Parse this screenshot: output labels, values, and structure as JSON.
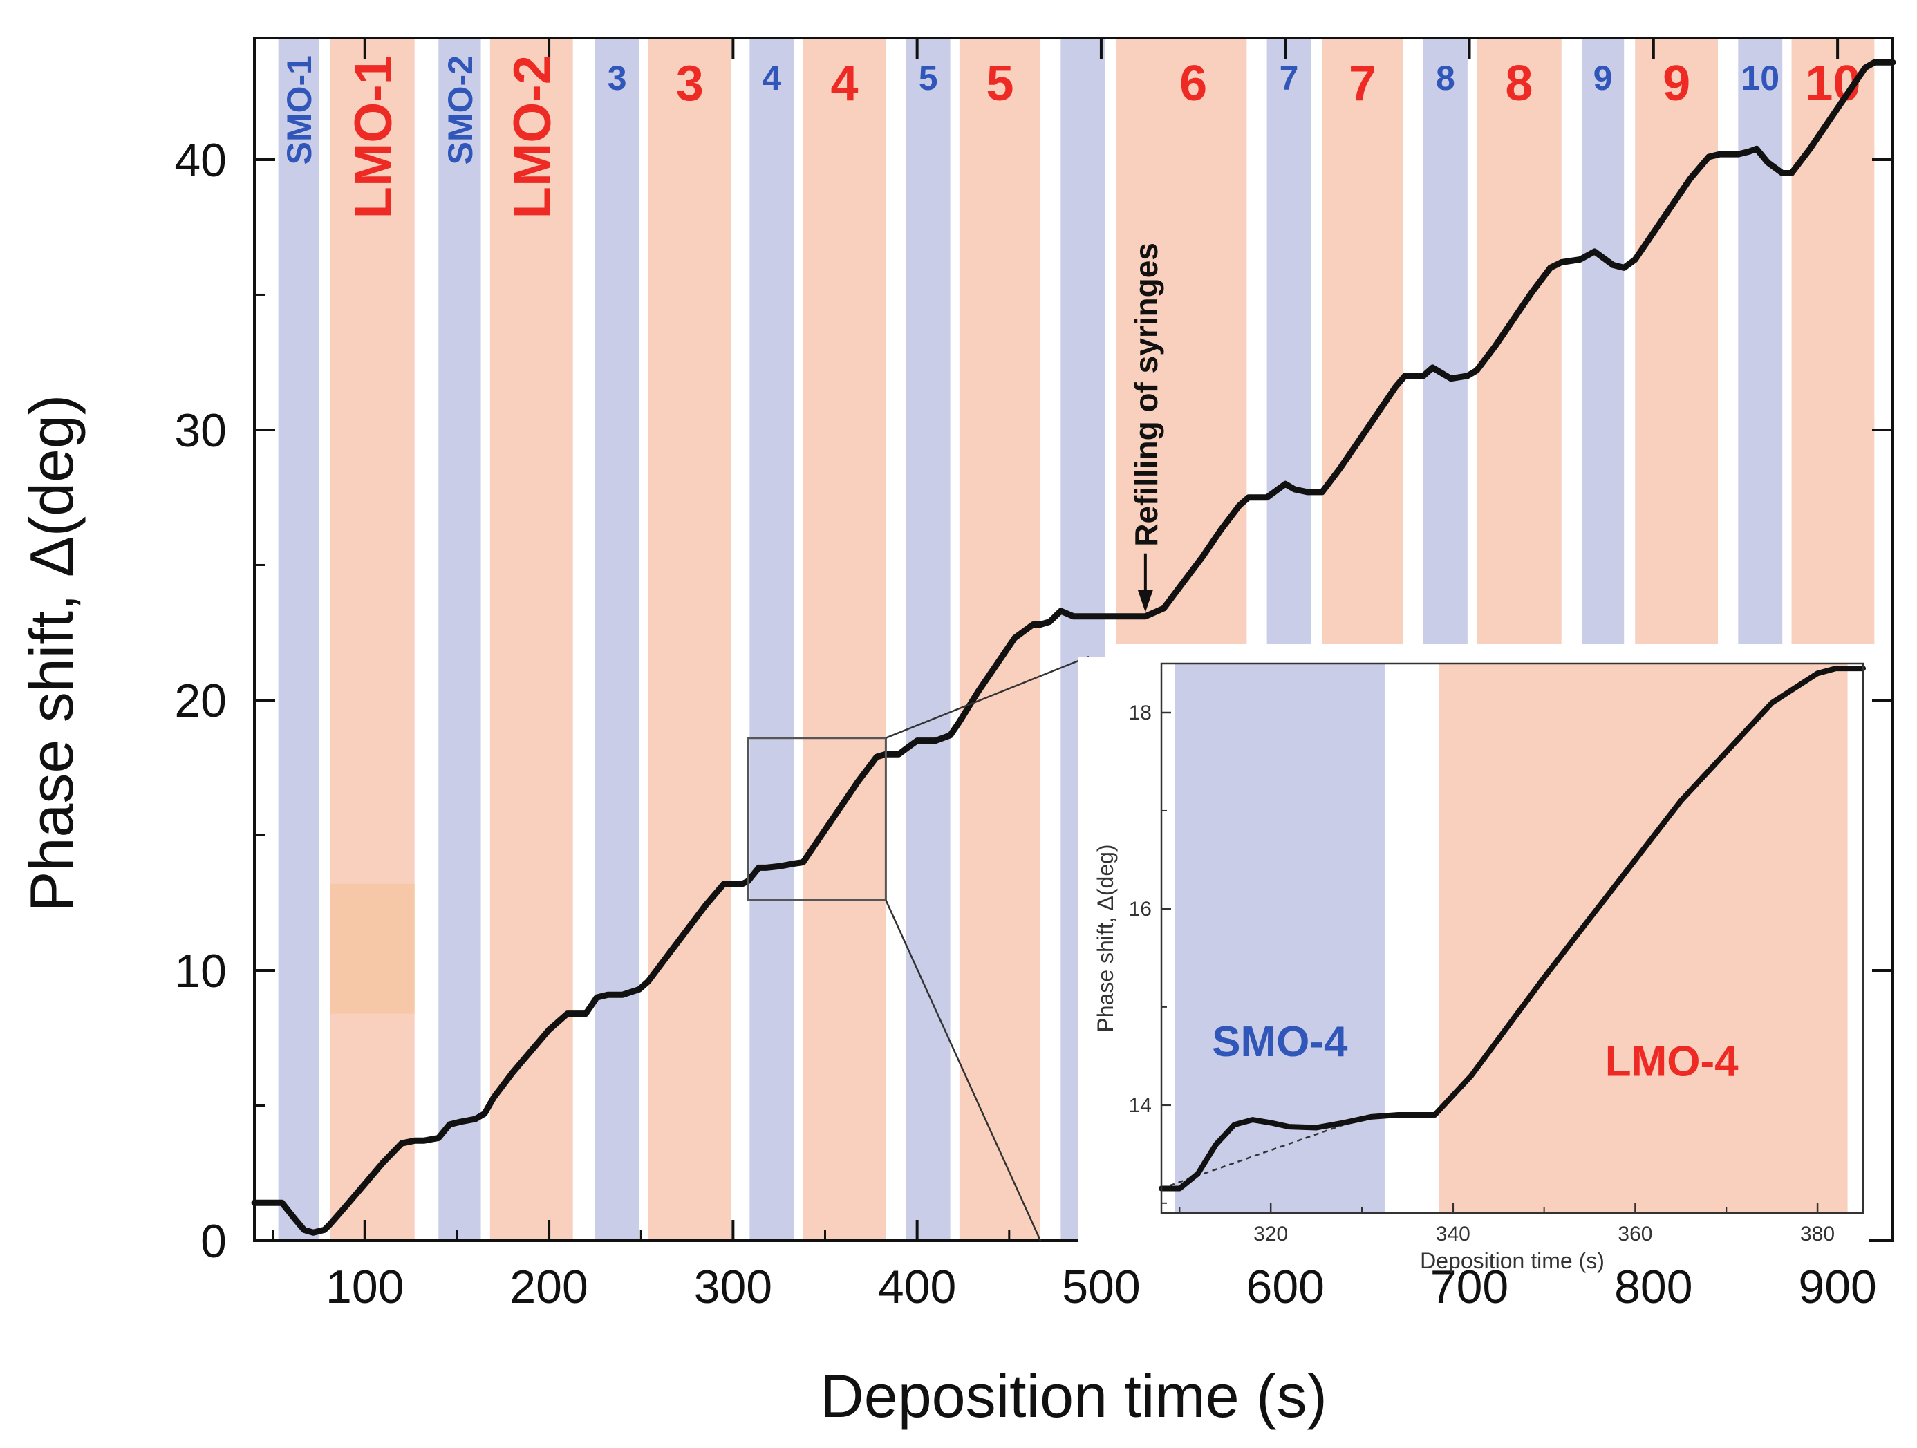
{
  "colors": {
    "smo_band": "#c9cde8",
    "lmo_band": "#f9cfbd",
    "lmo_patch": "#f7c8a8",
    "smo_text": "#2f56b8",
    "lmo_text": "#ee2a25",
    "curve": "#111111",
    "axis": "#111111"
  },
  "chart_data": [
    {
      "id": "main",
      "type": "line",
      "xlabel": "Deposition time (s)",
      "ylabel": "Phase shift, Δ(deg)",
      "xlim": [
        40,
        930
      ],
      "ylim": [
        0,
        44.5
      ],
      "xticks": [
        100,
        200,
        300,
        400,
        500,
        600,
        700,
        800,
        900
      ],
      "xtick_labels": [
        "100",
        "200",
        "300",
        "400",
        "500",
        "600",
        "700",
        "800",
        "900"
      ],
      "yticks": [
        0,
        10,
        20,
        30,
        40
      ],
      "ytick_labels": [
        "0",
        "10",
        "20",
        "30",
        "40"
      ],
      "bands": [
        {
          "kind": "smo",
          "x0": 53,
          "x1": 75,
          "label": "SMO-1",
          "label_style": "vertical"
        },
        {
          "kind": "lmo",
          "x0": 81,
          "x1": 127,
          "label": "LMO-1",
          "label_style": "vertical"
        },
        {
          "kind": "smo",
          "x0": 140,
          "x1": 163,
          "label": "SMO-2",
          "label_style": "vertical"
        },
        {
          "kind": "lmo",
          "x0": 168,
          "x1": 213,
          "label": "LMO-2",
          "label_style": "vertical"
        },
        {
          "kind": "smo",
          "x0": 225,
          "x1": 249,
          "label": "3",
          "label_style": "horizontal"
        },
        {
          "kind": "lmo",
          "x0": 254,
          "x1": 299,
          "label": "3",
          "label_style": "horizontal"
        },
        {
          "kind": "smo",
          "x0": 309,
          "x1": 333,
          "label": "4",
          "label_style": "horizontal"
        },
        {
          "kind": "lmo",
          "x0": 338,
          "x1": 383,
          "label": "4",
          "label_style": "horizontal"
        },
        {
          "kind": "smo",
          "x0": 394,
          "x1": 418,
          "label": "5",
          "label_style": "horizontal"
        },
        {
          "kind": "lmo",
          "x0": 423,
          "x1": 467,
          "label": "5",
          "label_style": "horizontal"
        },
        {
          "kind": "smo",
          "x0": 478,
          "x1": 502,
          "label": "",
          "label_style": "horizontal"
        },
        {
          "kind": "lmo",
          "x0": 508,
          "x1": 579,
          "label": "6",
          "label_style": "horizontal",
          "label_x": 550
        },
        {
          "kind": "smo",
          "x0": 590,
          "x1": 614,
          "label": "7",
          "label_style": "horizontal"
        },
        {
          "kind": "lmo",
          "x0": 620,
          "x1": 664,
          "label": "7",
          "label_style": "horizontal"
        },
        {
          "kind": "smo",
          "x0": 675,
          "x1": 699,
          "label": "8",
          "label_style": "horizontal"
        },
        {
          "kind": "lmo",
          "x0": 704,
          "x1": 750,
          "label": "8",
          "label_style": "horizontal"
        },
        {
          "kind": "smo",
          "x0": 761,
          "x1": 784,
          "label": "9",
          "label_style": "horizontal"
        },
        {
          "kind": "lmo",
          "x0": 790,
          "x1": 835,
          "label": "9",
          "label_style": "horizontal"
        },
        {
          "kind": "smo",
          "x0": 846,
          "x1": 870,
          "label": "10",
          "label_style": "horizontal"
        },
        {
          "kind": "lmo",
          "x0": 875,
          "x1": 920,
          "label": "10",
          "label_style": "horizontal"
        }
      ],
      "lmo_patch": {
        "x0": 81,
        "x1": 127,
        "y0": 8.4,
        "y1": 13.2
      },
      "annotation": {
        "text": "Refilling of syringes",
        "arrow_x": 524,
        "arrow_y": 23.1
      },
      "zoom_box": {
        "x0": 308,
        "x1": 383,
        "y0": 12.6,
        "y1": 18.6
      },
      "series": [
        {
          "name": "Phase shift",
          "x": [
            40,
            55,
            62,
            67,
            72,
            78,
            81,
            90,
            100,
            110,
            120,
            127,
            132,
            140,
            146,
            152,
            160,
            165,
            170,
            180,
            190,
            200,
            210,
            214,
            220,
            226,
            232,
            240,
            249,
            254,
            265,
            275,
            285,
            295,
            300,
            305,
            308,
            314,
            318,
            325,
            333,
            338,
            348,
            358,
            368,
            378,
            383,
            390,
            396,
            400,
            405,
            410,
            418,
            423,
            433,
            443,
            453,
            463,
            467,
            472,
            478,
            485,
            490,
            500,
            524,
            534,
            545,
            555,
            565,
            575,
            580,
            590,
            600,
            605,
            612,
            620,
            630,
            640,
            650,
            660,
            665,
            675,
            680,
            685,
            690,
            699,
            704,
            714,
            724,
            734,
            744,
            750,
            760,
            768,
            772,
            778,
            784,
            790,
            800,
            810,
            820,
            830,
            836,
            846,
            852,
            856,
            862,
            870,
            875,
            885,
            895,
            905,
            915,
            920,
            930
          ],
          "y": [
            1.4,
            1.4,
            0.8,
            0.4,
            0.3,
            0.4,
            0.6,
            1.3,
            2.1,
            2.9,
            3.6,
            3.7,
            3.7,
            3.8,
            4.3,
            4.4,
            4.5,
            4.7,
            5.3,
            6.2,
            7.0,
            7.8,
            8.4,
            8.4,
            8.4,
            9.0,
            9.1,
            9.1,
            9.3,
            9.6,
            10.6,
            11.5,
            12.4,
            13.2,
            13.2,
            13.2,
            13.3,
            13.8,
            13.8,
            13.85,
            13.95,
            14.0,
            15.0,
            16.0,
            17.0,
            17.9,
            18.0,
            18.0,
            18.3,
            18.5,
            18.5,
            18.5,
            18.7,
            19.2,
            20.3,
            21.3,
            22.3,
            22.8,
            22.8,
            22.9,
            23.3,
            23.1,
            23.1,
            23.1,
            23.1,
            23.4,
            24.4,
            25.3,
            26.3,
            27.2,
            27.5,
            27.5,
            28.0,
            27.8,
            27.7,
            27.7,
            28.6,
            29.6,
            30.6,
            31.6,
            32.0,
            32.0,
            32.3,
            32.1,
            31.9,
            32.0,
            32.2,
            33.1,
            34.1,
            35.1,
            36.0,
            36.2,
            36.3,
            36.6,
            36.4,
            36.1,
            36.0,
            36.3,
            37.3,
            38.3,
            39.3,
            40.1,
            40.2,
            40.2,
            40.3,
            40.4,
            39.9,
            39.5,
            39.5,
            40.4,
            41.4,
            42.4,
            43.4,
            43.6,
            43.6
          ]
        }
      ]
    },
    {
      "id": "inset",
      "type": "line",
      "xlabel": "Deposition time (s)",
      "ylabel": "Phase shift, Δ(deg)",
      "xlim": [
        308,
        385
      ],
      "ylim": [
        12.9,
        18.5
      ],
      "xticks": [
        320,
        340,
        360,
        380
      ],
      "xtick_labels": [
        "320",
        "340",
        "360",
        "380"
      ],
      "yticks": [
        14,
        16,
        18
      ],
      "ytick_labels": [
        "14",
        "16",
        "18"
      ],
      "bands": [
        {
          "kind": "smo",
          "x0": 309.5,
          "x1": 332.5,
          "label": "SMO-4",
          "label_x": 321,
          "label_y": 14.5
        },
        {
          "kind": "lmo",
          "x0": 338.5,
          "x1": 383.3,
          "label": "LMO-4",
          "label_x": 364,
          "label_y": 14.3
        }
      ],
      "series": [
        {
          "name": "Phase shift",
          "x": [
            308,
            310,
            312,
            314,
            316,
            318,
            320,
            322,
            325,
            328,
            331,
            334,
            338,
            342,
            346,
            350,
            355,
            360,
            365,
            370,
            375,
            380,
            382,
            385
          ],
          "y": [
            13.15,
            13.15,
            13.3,
            13.6,
            13.8,
            13.85,
            13.82,
            13.78,
            13.77,
            13.82,
            13.88,
            13.9,
            13.9,
            14.3,
            14.8,
            15.3,
            15.9,
            16.5,
            17.1,
            17.6,
            18.1,
            18.4,
            18.45,
            18.45
          ]
        },
        {
          "name": "baseline",
          "style": "dashed",
          "x": [
            308,
            328
          ],
          "y": [
            13.15,
            13.8
          ]
        }
      ]
    }
  ]
}
